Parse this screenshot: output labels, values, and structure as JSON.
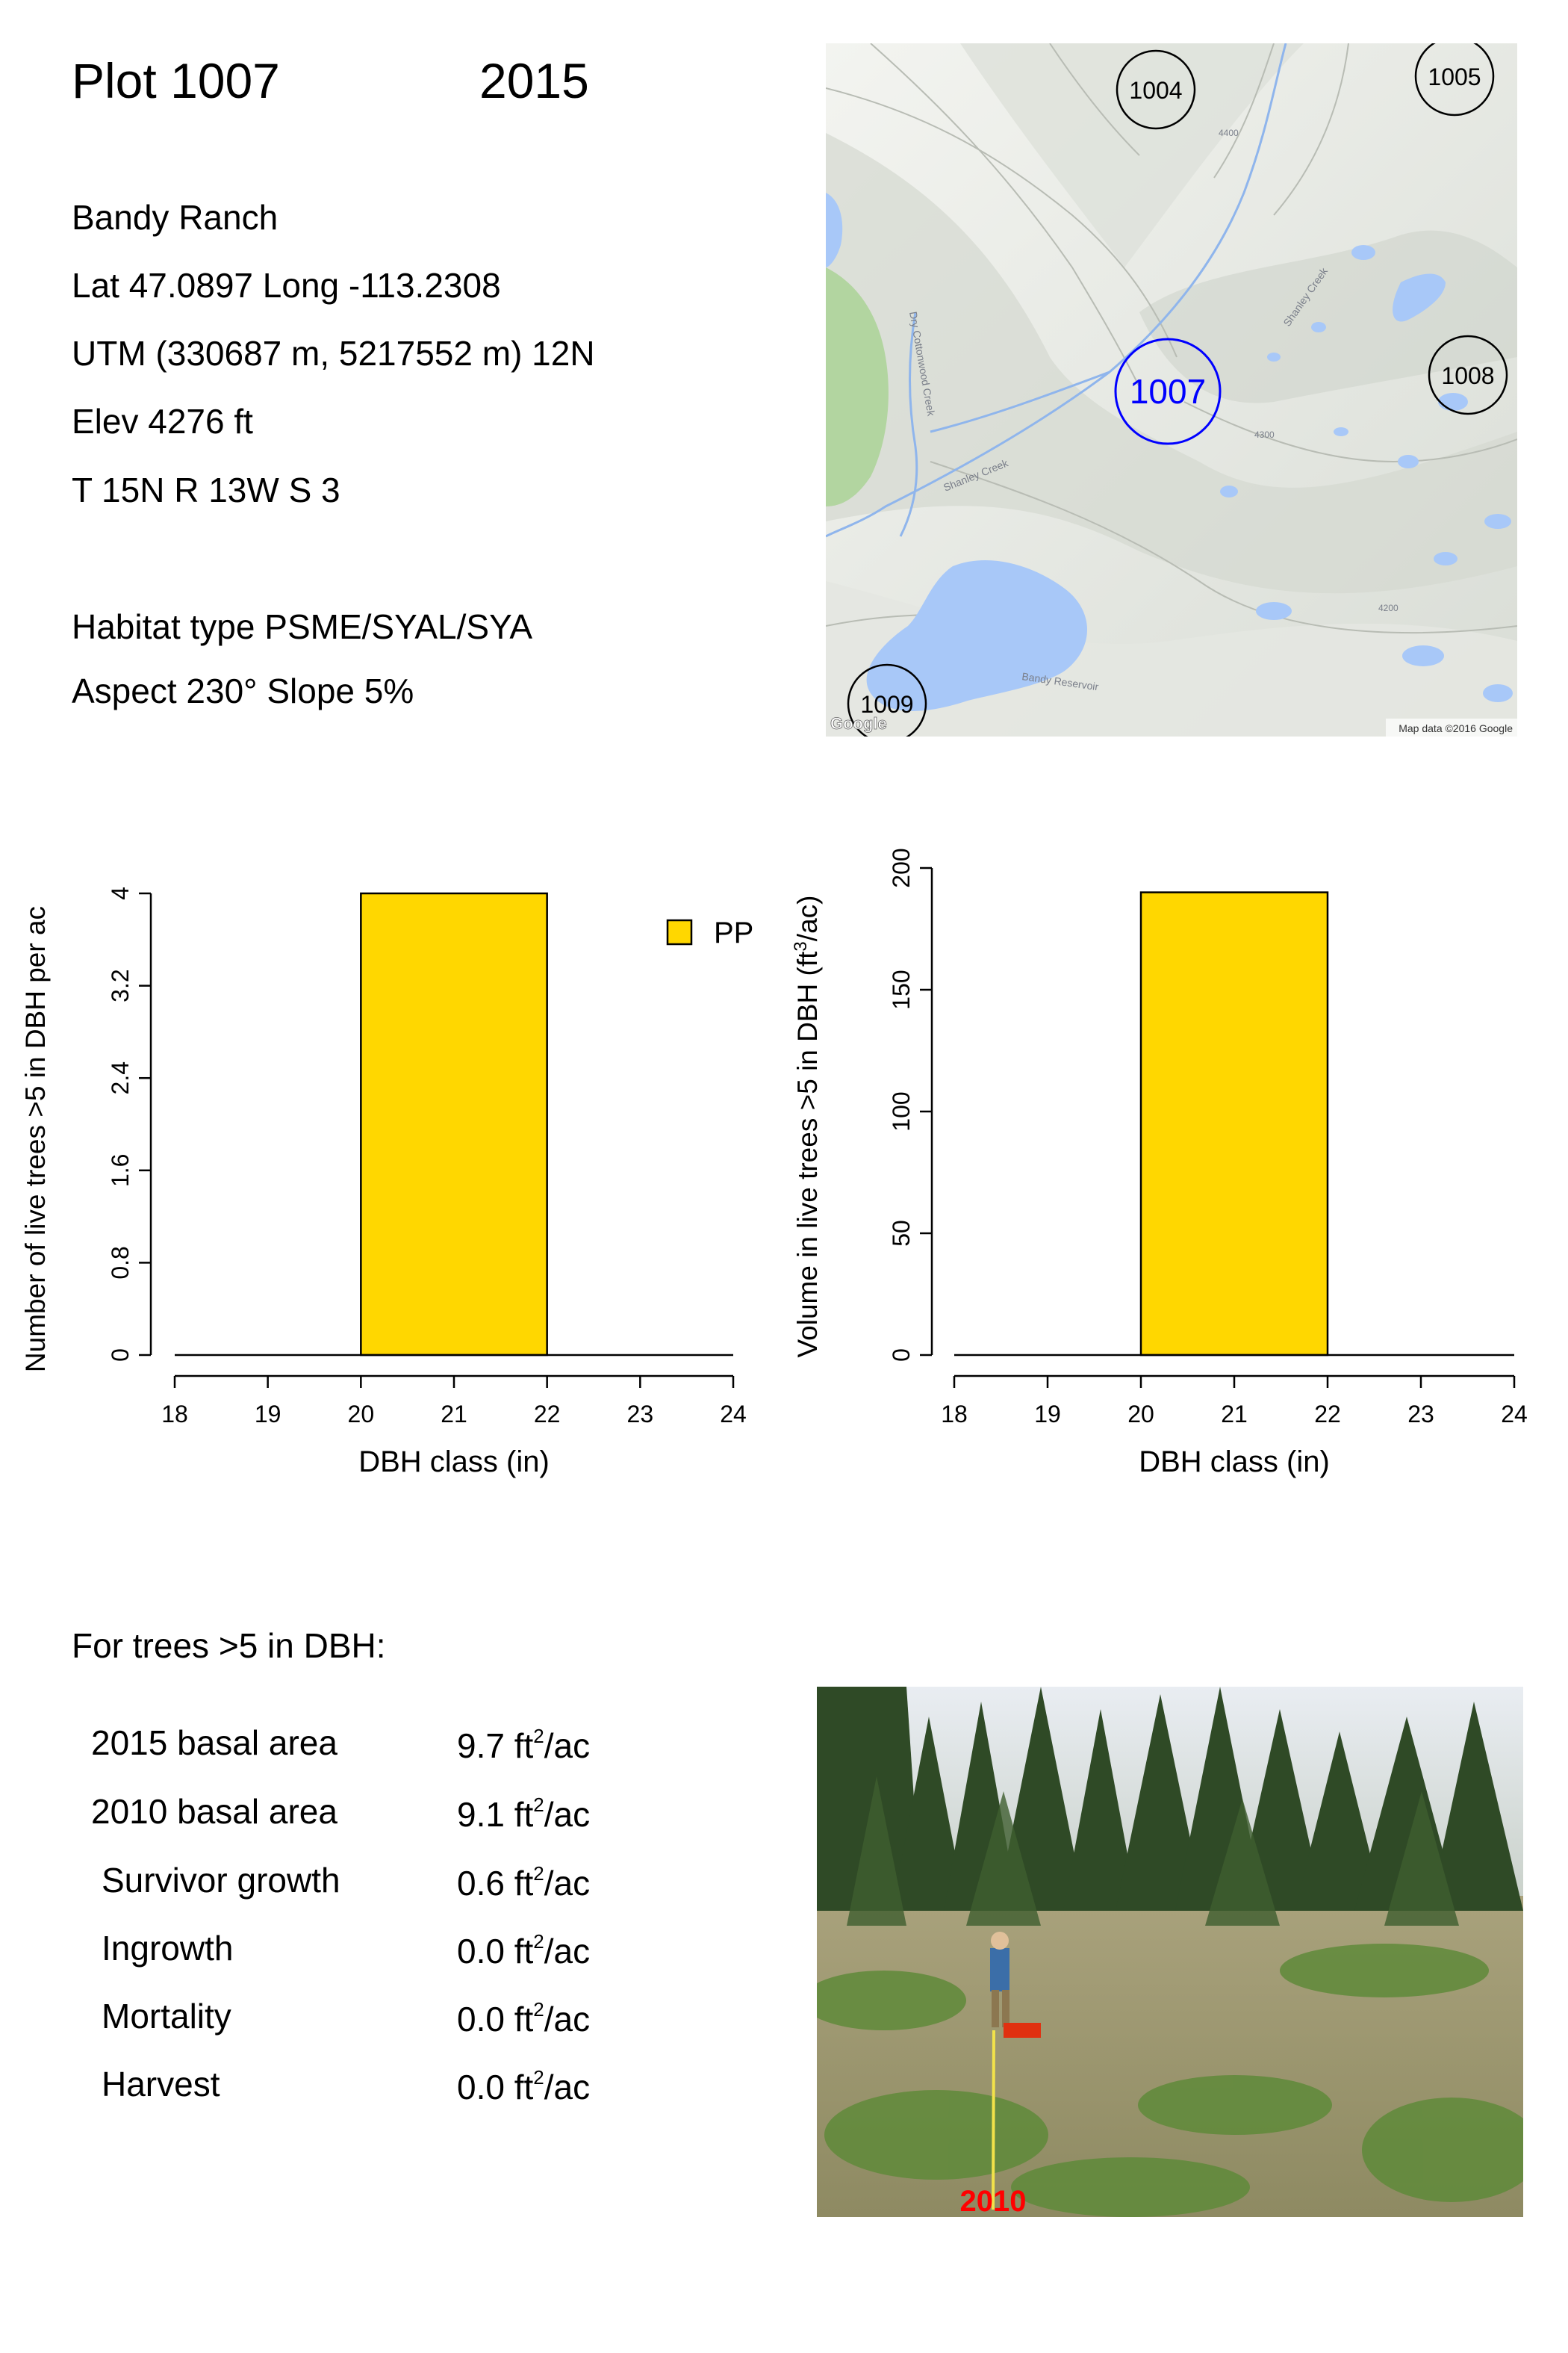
{
  "header": {
    "plot": "Plot 1007",
    "year": "2015"
  },
  "info": {
    "site": "Bandy Ranch",
    "latlong": "Lat 47.0897 Long -113.2308",
    "utm": "UTM (330687 m, 5217552 m)  12N",
    "elev": "Elev 4276 ft",
    "trs": "T 15N  R 13W  S 3",
    "habitat": "Habitat type PSME/SYAL/SYA",
    "aspect": "Aspect 230° Slope 5%"
  },
  "map": {
    "markers": [
      {
        "label": "1004",
        "color": "#000000"
      },
      {
        "label": "1005",
        "color": "#000000"
      },
      {
        "label": "1007",
        "color": "#0000ff"
      },
      {
        "label": "1008",
        "color": "#000000"
      },
      {
        "label": "1009",
        "color": "#000000"
      }
    ],
    "labels": {
      "shanley_creek": "Shanley Creek",
      "shanley_creek_2": "Shanley Creek",
      "dry_cottonwood": "Dry Cottonwood Creek",
      "reservoir": "Bandy Reservoir",
      "c4400": "4400",
      "c4300": "4300",
      "c4200": "4200"
    },
    "attribution": "Map data ©2016 Google",
    "logo": "Google",
    "water_color": "#a8c8f8",
    "park_color": "#b2d5a0"
  },
  "chart_data": [
    {
      "type": "bar",
      "ylabel": "Number of live trees >5 in DBH per ac",
      "xlabel": "DBH class (in)",
      "xticks": [
        18,
        19,
        20,
        21,
        22,
        23,
        24
      ],
      "xlim": [
        18,
        24
      ],
      "ylim": [
        0,
        4
      ],
      "yticks": [
        "0",
        "0.8",
        "1.6",
        "2.4",
        "3.2",
        "4"
      ],
      "bars": [
        {
          "x0": 20,
          "x1": 22,
          "value": 4
        }
      ],
      "legend": {
        "label": "PP",
        "color": "#ffd700",
        "position": "top-right"
      }
    },
    {
      "type": "bar",
      "ylabel_prefix": "Volume in live trees >5 in DBH (ft",
      "ylabel_sup": "3",
      "ylabel_suffix": "/ac)",
      "xlabel": "DBH class (in)",
      "xticks": [
        18,
        19,
        20,
        21,
        22,
        23,
        24
      ],
      "xlim": [
        18,
        24
      ],
      "ylim": [
        0,
        200
      ],
      "yticks": [
        "0",
        "50",
        "100",
        "150",
        "200"
      ],
      "bars": [
        {
          "x0": 20,
          "x1": 22,
          "value": 190
        }
      ],
      "color": "#ffd700"
    }
  ],
  "summary": {
    "heading": "For trees >5 in DBH:",
    "unit": "ft",
    "unit_sup": "2",
    "unit_suffix": "/ac",
    "rows": [
      {
        "label": "2015 basal area",
        "value": "9.7"
      },
      {
        "label": "2010 basal area",
        "value": "9.1"
      },
      {
        "label": "Survivor growth",
        "value": "0.6"
      },
      {
        "label": "Ingrowth",
        "value": "0.0"
      },
      {
        "label": "Mortality",
        "value": "0.0"
      },
      {
        "label": "Harvest",
        "value": "0.0"
      }
    ]
  },
  "photo": {
    "caption": "2010",
    "caption_color": "#ff0000"
  }
}
